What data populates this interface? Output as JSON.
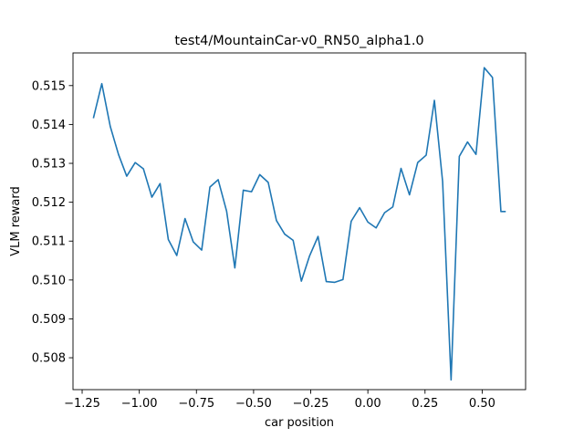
{
  "chart_data": {
    "type": "line",
    "title": "test4/MountainCar-v0_RN50_alpha1.0",
    "xlabel": "car position",
    "ylabel": "VLM reward",
    "xlim": [
      -1.29,
      0.69
    ],
    "ylim": [
      0.50718,
      0.51584
    ],
    "xticks": [
      -1.25,
      -1.0,
      -0.75,
      -0.5,
      -0.25,
      0.0,
      0.25,
      0.5
    ],
    "xtick_labels": [
      "−1.25",
      "−1.00",
      "−0.75",
      "−0.50",
      "−0.25",
      "0.00",
      "0.25",
      "0.50"
    ],
    "yticks": [
      0.508,
      0.509,
      0.51,
      0.511,
      0.512,
      0.513,
      0.514,
      0.515
    ],
    "ytick_labels": [
      "0.508",
      "0.509",
      "0.510",
      "0.511",
      "0.512",
      "0.513",
      "0.514",
      "0.515"
    ],
    "grid": false,
    "colors": {
      "line": "#1f77b4"
    },
    "series": [
      {
        "x": [
          -1.2,
          -1.164,
          -1.127,
          -1.091,
          -1.055,
          -1.018,
          -0.982,
          -0.945,
          -0.909,
          -0.873,
          -0.836,
          -0.8,
          -0.764,
          -0.727,
          -0.691,
          -0.655,
          -0.618,
          -0.582,
          -0.545,
          -0.509,
          -0.473,
          -0.436,
          -0.4,
          -0.364,
          -0.327,
          -0.291,
          -0.255,
          -0.218,
          -0.182,
          -0.145,
          -0.109,
          -0.073,
          -0.036,
          0.0,
          0.036,
          0.073,
          0.109,
          0.145,
          0.182,
          0.218,
          0.255,
          0.291,
          0.327,
          0.364,
          0.4,
          0.436,
          0.473,
          0.509,
          0.545,
          0.582,
          0.6
        ],
        "values": [
          0.51418,
          0.51505,
          0.51395,
          0.51323,
          0.51267,
          0.51302,
          0.51286,
          0.51213,
          0.51248,
          0.51104,
          0.51063,
          0.51158,
          0.51098,
          0.51077,
          0.51239,
          0.51258,
          0.51177,
          0.51031,
          0.51231,
          0.51227,
          0.51271,
          0.51251,
          0.51153,
          0.51118,
          0.51102,
          0.50997,
          0.51062,
          0.51112,
          0.50996,
          0.50994,
          0.51001,
          0.51151,
          0.51186,
          0.51149,
          0.51134,
          0.51173,
          0.51188,
          0.51287,
          0.51219,
          0.51302,
          0.51321,
          0.51462,
          0.51253,
          0.50743,
          0.51318,
          0.51355,
          0.51323,
          0.51546,
          0.51521,
          0.51176,
          0.51176
        ]
      }
    ]
  }
}
